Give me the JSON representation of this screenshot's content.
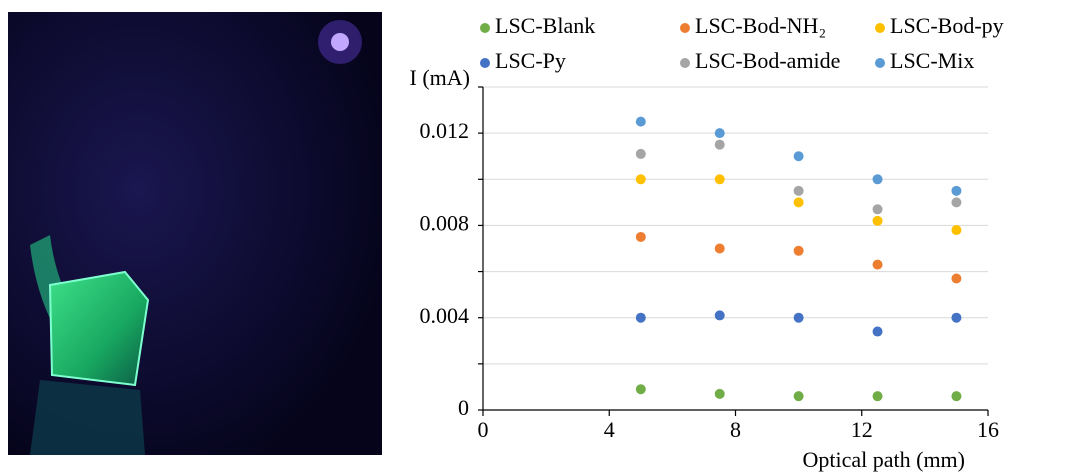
{
  "chart_data": {
    "type": "scatter",
    "x_label": "Optical path (mm)",
    "y_label": "I (mA)",
    "x": [
      5,
      7.5,
      10,
      12.5,
      15
    ],
    "xlim": [
      0,
      16
    ],
    "xticks": [
      0,
      4,
      8,
      12,
      16
    ],
    "ylim": [
      0,
      0.014
    ],
    "yticks": [
      0,
      0.004,
      0.008,
      0.012
    ],
    "minor_grid": [
      0.002,
      0.006,
      0.01,
      0.014
    ],
    "grid": true,
    "series": [
      {
        "name": "LSC-Blank",
        "color": "#70ad47",
        "values": [
          0.0009,
          0.0007,
          0.0006,
          0.0006,
          0.0006
        ]
      },
      {
        "name": "LSC-Bod-NH₂",
        "color": "#ed7d31",
        "values": [
          0.0075,
          0.007,
          0.0069,
          0.0063,
          0.0057
        ]
      },
      {
        "name": "LSC-Bod-py",
        "color": "#ffc000",
        "values": [
          0.01,
          0.01,
          0.009,
          0.0082,
          0.0078
        ]
      },
      {
        "name": "LSC-Py",
        "color": "#4472c4",
        "values": [
          0.004,
          0.0041,
          0.004,
          0.0034,
          0.004
        ]
      },
      {
        "name": "LSC-Bod-amide",
        "color": "#a5a5a5",
        "values": [
          0.0111,
          0.0115,
          0.0095,
          0.0087,
          0.009
        ]
      },
      {
        "name": "LSC-Mix",
        "color": "#5b9bd5",
        "values": [
          0.0125,
          0.012,
          0.011,
          0.01,
          0.0095
        ]
      }
    ]
  }
}
